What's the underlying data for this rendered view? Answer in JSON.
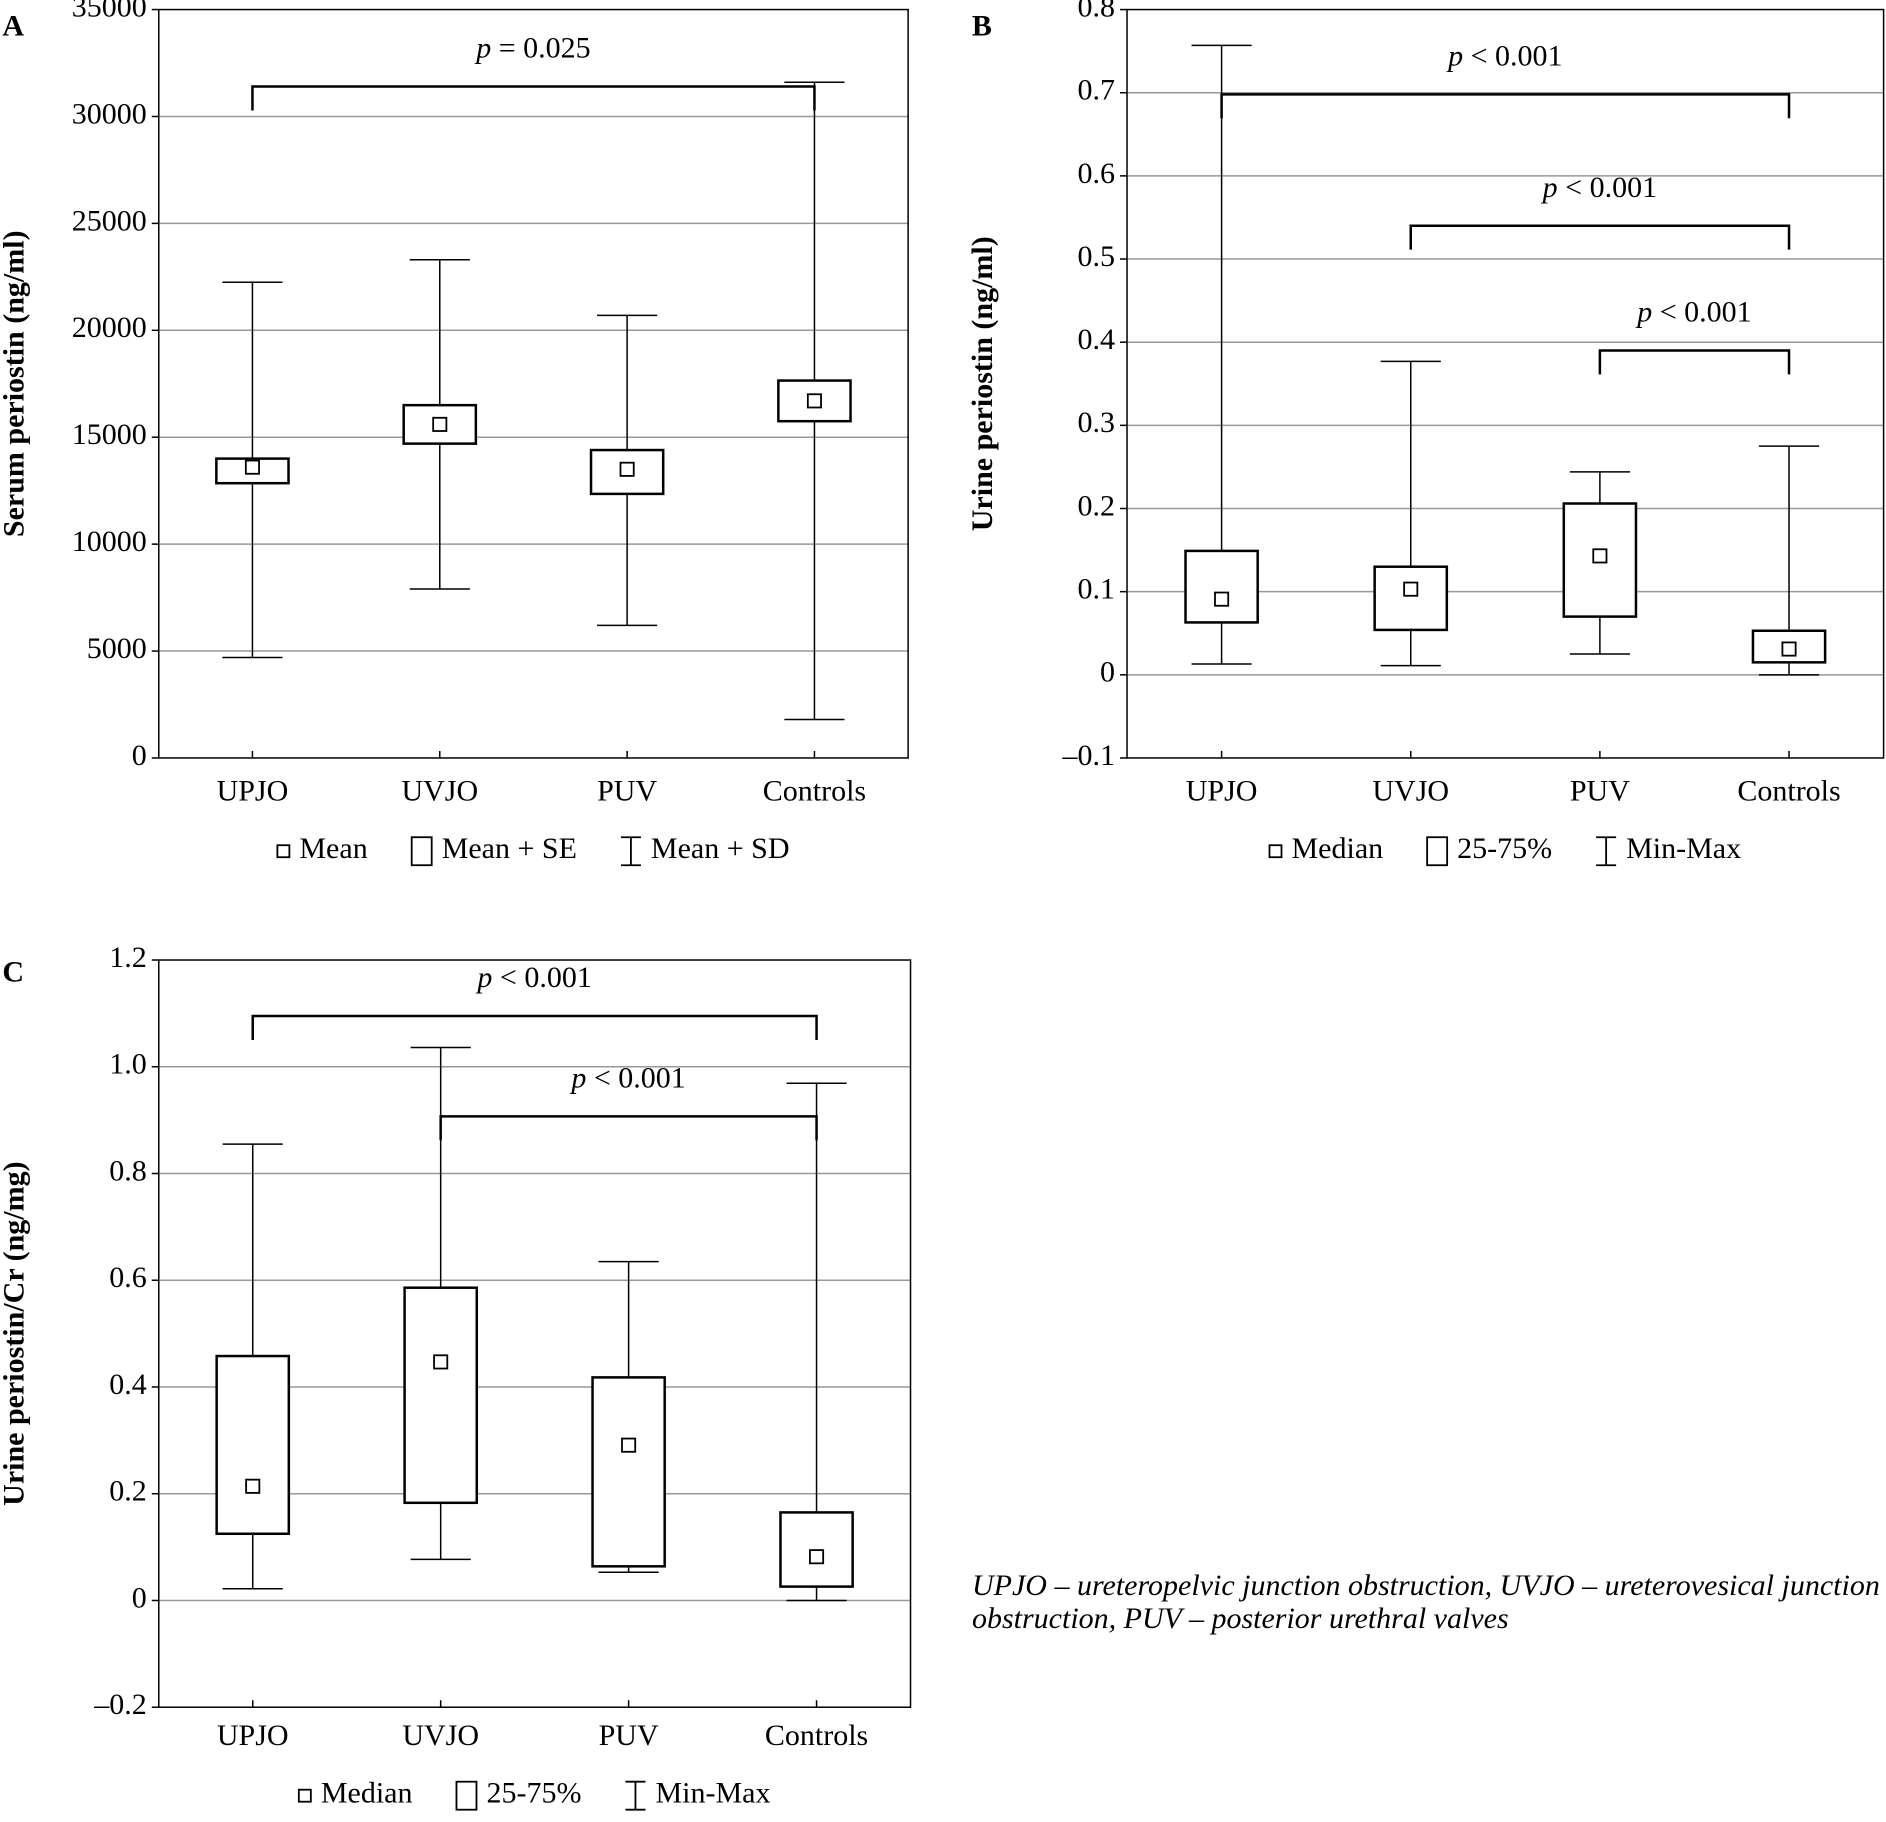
{
  "chart_data": [
    {
      "type": "box",
      "panel": "A",
      "y_label": "Serum periostin (ng/ml)",
      "categories": [
        "UPJO",
        "UVJO",
        "PUV",
        "Controls"
      ],
      "center": [
        13600,
        15600,
        13500,
        16700
      ],
      "box_low": [
        12850,
        14700,
        12350,
        15750
      ],
      "box_high": [
        14000,
        16500,
        14400,
        17650
      ],
      "whisker_low": [
        4700,
        7900,
        6200,
        1800
      ],
      "whisker_high": [
        22250,
        23300,
        20700,
        31600
      ],
      "legend": [
        "Mean",
        "Mean + SE",
        "Mean + SD"
      ],
      "ylim": [
        0,
        35000
      ],
      "yticks": [
        0,
        5000,
        10000,
        15000,
        20000,
        25000,
        30000,
        35000
      ],
      "grid": true,
      "annotations": [
        {
          "text": "p = 0.025",
          "from": "UPJO",
          "to": "Controls",
          "y": 31400
        }
      ]
    },
    {
      "type": "box",
      "panel": "B",
      "y_label": "Urine periostin (ng/ml)",
      "categories": [
        "UPJO",
        "UVJO",
        "PUV",
        "Controls"
      ],
      "center": [
        0.091,
        0.103,
        0.143,
        0.031
      ],
      "box_low": [
        0.063,
        0.054,
        0.07,
        0.015
      ],
      "box_high": [
        0.149,
        0.13,
        0.206,
        0.053
      ],
      "whisker_low": [
        0.013,
        0.011,
        0.025,
        0
      ],
      "whisker_high": [
        0.757,
        0.377,
        0.244,
        0.275
      ],
      "legend": [
        "Median",
        "25-75%",
        "Min-Max"
      ],
      "ylim": [
        -0.1,
        0.8
      ],
      "yticks": [
        {
          "value": -0.1,
          "label": "–0.1"
        },
        0,
        0.1,
        0.2,
        0.3,
        0.4,
        0.5,
        0.6,
        0.7,
        0.8
      ],
      "grid": true,
      "annotations": [
        {
          "text": "p < 0.001",
          "from": "UPJO",
          "to": "Controls",
          "y": 0.698
        },
        {
          "text": "p < 0.001",
          "from": "UVJO",
          "to": "Controls",
          "y": 0.54
        },
        {
          "text": "p < 0.001",
          "from": "PUV",
          "to": "Controls",
          "y": 0.39
        }
      ]
    },
    {
      "type": "box",
      "panel": "C",
      "y_label": "Urine periostin/Cr (ng/mg)",
      "categories": [
        "UPJO",
        "UVJO",
        "PUV",
        "Controls"
      ],
      "center": [
        0.214,
        0.447,
        0.291,
        0.082
      ],
      "box_low": [
        0.125,
        0.183,
        0.064,
        0.026
      ],
      "box_high": [
        0.458,
        0.586,
        0.418,
        0.165
      ],
      "whisker_low": [
        0.022,
        0.077,
        0.053,
        0
      ],
      "whisker_high": [
        0.855,
        1.036,
        0.635,
        0.969
      ],
      "legend": [
        "Median",
        "25-75%",
        "Min-Max"
      ],
      "ylim": [
        -0.2,
        1.2
      ],
      "yticks": [
        {
          "value": -0.2,
          "label": "–0.2"
        },
        0,
        0.2,
        0.4,
        0.6,
        0.8,
        {
          "value": 1.0,
          "label": "1.0"
        },
        1.2
      ],
      "grid": true,
      "annotations": [
        {
          "text": "p < 0.001",
          "from": "UPJO",
          "to": "Controls",
          "y": 1.095
        },
        {
          "text": "p < 0.001",
          "from": "UVJO",
          "to": "Controls",
          "y": 0.907
        }
      ]
    }
  ],
  "footnote": [
    "UPJO – ureteropelvic junction obstruction, UVJO – ureterovesical junction",
    "obstruction, PUV – posterior urethral valves"
  ]
}
